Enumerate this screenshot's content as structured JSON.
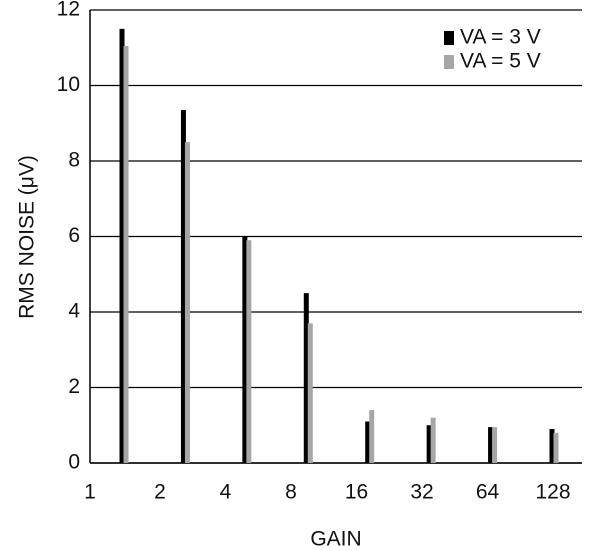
{
  "chart_data": {
    "type": "bar",
    "x_label": "GAIN",
    "y_label": "RMS NOISE (μV)",
    "categories": [
      "1",
      "2",
      "4",
      "8",
      "16",
      "32",
      "64",
      "128"
    ],
    "series": [
      {
        "name": "VA = 3 V",
        "color": "#000000",
        "values": [
          11.5,
          9.35,
          6.0,
          4.5,
          1.1,
          1.0,
          0.95,
          0.9
        ]
      },
      {
        "name": "VA = 5 V",
        "color": "#a6a6a6",
        "values": [
          11.05,
          8.5,
          5.9,
          3.7,
          1.4,
          1.2,
          0.95,
          0.8
        ]
      }
    ],
    "ylim": [
      0,
      12
    ],
    "yticks": [
      0,
      2,
      4,
      6,
      8,
      10,
      12
    ],
    "grid": true,
    "legend": "top-right"
  }
}
